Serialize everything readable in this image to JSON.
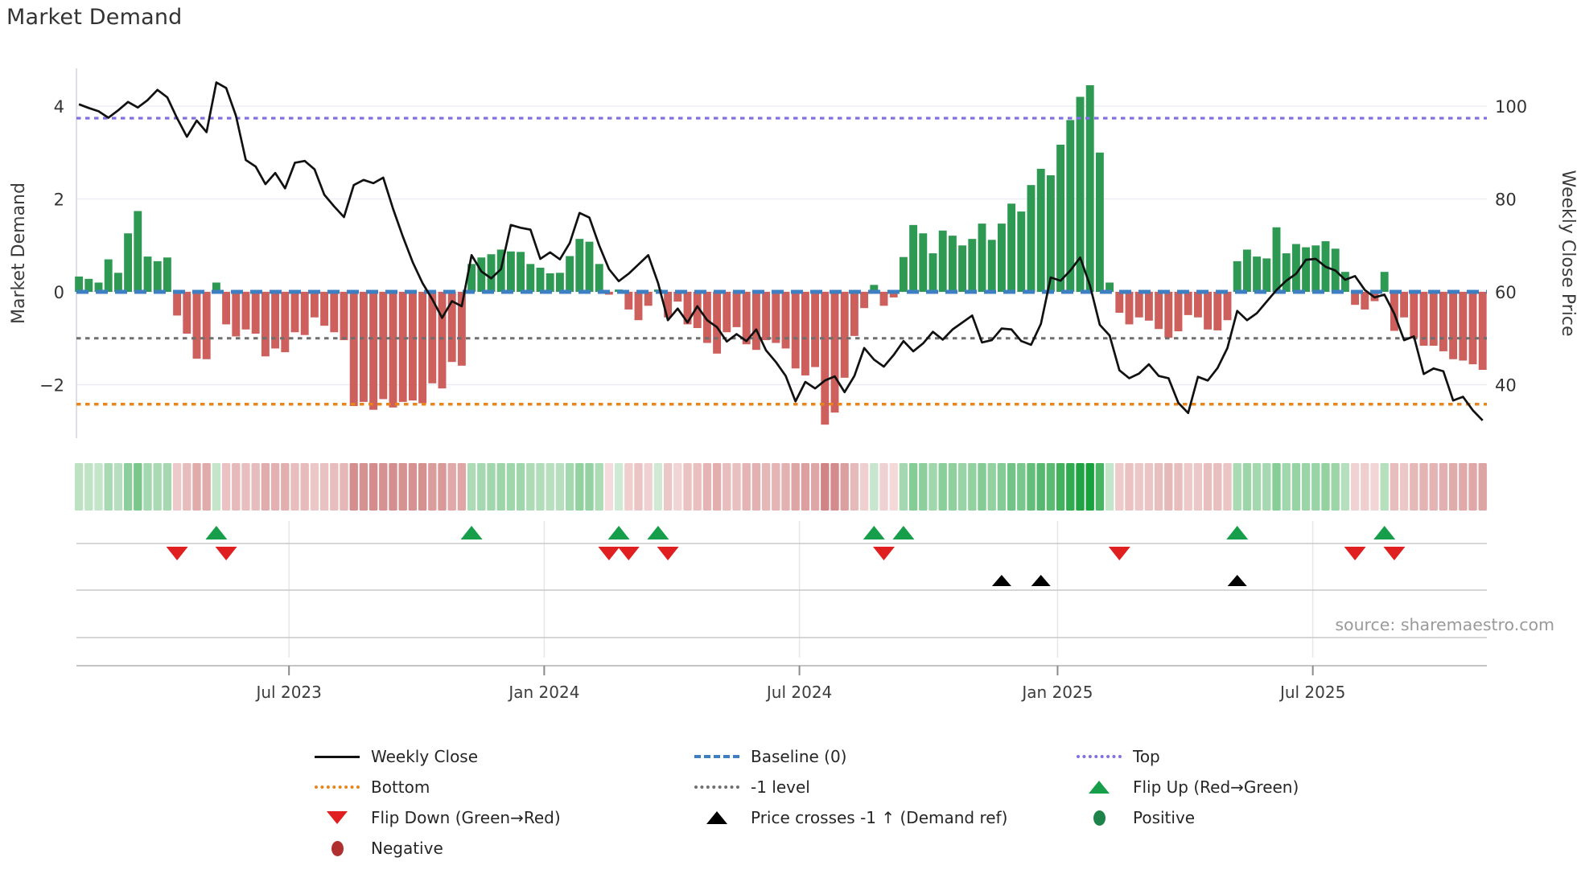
{
  "title": "Market Demand",
  "source": "source: sharemaestro.com",
  "left_axis": {
    "label": "Market Demand",
    "tick_labels": [
      "4",
      "2",
      "0",
      "−2"
    ],
    "tick_values": [
      4,
      2,
      0,
      -2
    ]
  },
  "right_axis": {
    "label": "Weekly Close Price",
    "tick_labels": [
      "100",
      "80",
      "60",
      "40"
    ],
    "tick_values": [
      100,
      80,
      60,
      40
    ]
  },
  "x_axis": {
    "tick_labels": [
      "Jul 2023",
      "Jan 2024",
      "Jul 2024",
      "Jan 2025",
      "Jul 2025"
    ],
    "tick_weeks": [
      21.4,
      47.4,
      73.4,
      99.7,
      125.7
    ]
  },
  "colors": {
    "bar_positive": "#2e9953",
    "bar_negative": "#cd5f5c",
    "price_line": "#111111",
    "baseline": "#3d7fc1",
    "top_line": "#8170e0",
    "bottom_line": "#e8861c",
    "minus1_line": "#6f6f6f",
    "flip_up": "#179e4b",
    "flip_down": "#e02020",
    "price_cross": "#000000",
    "positive_dot": "#1d8348",
    "negative_dot": "#b03030",
    "heat_pos_light": "#d7ecd9",
    "heat_pos_max": "#18a13c",
    "heat_neg_light": "#f6e0e0",
    "heat_neg_max": "#d08383",
    "grid": "#ebebf2",
    "axis_line": "#c9c9c9",
    "tick_text": "#3c3c3c",
    "source_text": "#9a9a9a"
  },
  "legend": {
    "columns": [
      {
        "items": [
          {
            "swatch": "line-black",
            "label": "Weekly Close"
          },
          {
            "swatch": "dotted-orange",
            "label": "Bottom"
          },
          {
            "swatch": "triangle-down-red",
            "label": "Flip Down (Green→Red)"
          },
          {
            "swatch": "circle-darkred",
            "label": "Negative"
          }
        ]
      },
      {
        "items": [
          {
            "swatch": "dashed-blue",
            "label": "Baseline (0)"
          },
          {
            "swatch": "dotted-gray",
            "label": "-1 level"
          },
          {
            "swatch": "triangle-up-black",
            "label": "Price crosses -1 ↑ (Demand ref)"
          }
        ]
      },
      {
        "items": [
          {
            "swatch": "dotted-purple",
            "label": "Top"
          },
          {
            "swatch": "triangle-up-green",
            "label": "Flip Up (Red→Green)"
          },
          {
            "swatch": "circle-green",
            "label": "Positive"
          }
        ]
      }
    ]
  },
  "chart_data": {
    "type": "bar",
    "subtype": "weekly demand bars + price line + heatmap strip + event markers",
    "weeks": 144,
    "x_range_note": "weekly data, approx Feb 2023 to Oct 2025",
    "ylim_left": [
      -3.15,
      4.8
    ],
    "ylim_right": [
      28.5,
      108
    ],
    "levels": {
      "baseline": 0,
      "top": 3.74,
      "minus1": -1,
      "bottom": -2.42
    },
    "series": [
      {
        "name": "Market Demand (bars)",
        "values": [
          0.33,
          0.28,
          0.2,
          0.7,
          0.41,
          1.26,
          1.74,
          0.76,
          0.66,
          0.74,
          -0.51,
          -0.9,
          -1.44,
          -1.45,
          0.2,
          -0.7,
          -0.96,
          -0.81,
          -0.9,
          -1.39,
          -1.22,
          -1.3,
          -0.87,
          -0.93,
          -0.55,
          -0.73,
          -0.87,
          -1.04,
          -2.46,
          -2.37,
          -2.54,
          -2.31,
          -2.49,
          -2.37,
          -2.34,
          -2.4,
          -1.97,
          -2.08,
          -1.51,
          -1.59,
          0.6,
          0.74,
          0.81,
          0.91,
          0.87,
          0.86,
          0.6,
          0.52,
          0.4,
          0.41,
          0.77,
          1.14,
          1.08,
          0.6,
          -0.06,
          0.05,
          -0.38,
          -0.61,
          -0.3,
          0.05,
          -0.55,
          -0.21,
          -0.7,
          -0.78,
          -1.1,
          -1.33,
          -0.87,
          -0.76,
          -1.13,
          -1.25,
          -1.04,
          -1.1,
          -1.22,
          -1.65,
          -1.8,
          -1.62,
          -2.86,
          -2.6,
          -1.85,
          -0.95,
          -0.35,
          0.15,
          -0.3,
          -0.12,
          0.75,
          1.44,
          1.26,
          0.83,
          1.32,
          1.21,
          1.0,
          1.14,
          1.47,
          1.12,
          1.47,
          1.9,
          1.73,
          2.3,
          2.65,
          2.51,
          3.17,
          3.7,
          4.2,
          4.45,
          3.0,
          0.2,
          -0.45,
          -0.7,
          -0.55,
          -0.62,
          -0.8,
          -0.99,
          -0.85,
          -0.5,
          -0.55,
          -0.81,
          -0.83,
          -0.61,
          0.66,
          0.91,
          0.76,
          0.72,
          1.39,
          0.83,
          1.03,
          0.96,
          1.0,
          1.09,
          0.93,
          0.43,
          -0.28,
          -0.38,
          -0.2,
          0.43,
          -0.84,
          -0.55,
          -0.99,
          -1.16,
          -1.16,
          -1.28,
          -1.45,
          -1.48,
          -1.56,
          -1.68
        ]
      },
      {
        "name": "Weekly Close (line, right axis)",
        "values": [
          100.4,
          99.6,
          98.9,
          97.5,
          99.1,
          100.9,
          99.7,
          101.3,
          103.5,
          101.9,
          97.4,
          93.4,
          96.9,
          94.4,
          105.1,
          103.9,
          97.9,
          88.4,
          87.0,
          83.2,
          85.6,
          82.3,
          87.8,
          88.2,
          86.4,
          80.9,
          78.4,
          76.1,
          83.0,
          84.1,
          83.4,
          84.6,
          77.9,
          71.9,
          66.4,
          61.9,
          58.4,
          54.4,
          58.0,
          56.9,
          67.9,
          64.4,
          62.9,
          64.9,
          74.4,
          73.8,
          73.4,
          67.1,
          68.5,
          67.0,
          70.5,
          77.0,
          76.0,
          70.0,
          64.9,
          62.3,
          63.9,
          65.9,
          67.9,
          61.9,
          53.9,
          56.4,
          53.4,
          56.9,
          53.9,
          52.4,
          49.3,
          50.9,
          49.4,
          51.9,
          47.4,
          44.9,
          41.9,
          36.4,
          40.6,
          39.2,
          40.9,
          41.8,
          38.4,
          41.9,
          47.9,
          45.4,
          43.9,
          46.4,
          49.4,
          47.2,
          48.9,
          51.4,
          49.7,
          51.9,
          53.4,
          54.9,
          49.1,
          49.6,
          52.1,
          51.9,
          49.4,
          48.6,
          53.1,
          63.1,
          62.4,
          64.6,
          67.4,
          61.4,
          52.9,
          50.6,
          43.1,
          41.4,
          42.4,
          44.4,
          41.9,
          41.4,
          36.1,
          33.9,
          41.7,
          40.9,
          43.6,
          47.9,
          55.9,
          53.9,
          55.4,
          57.9,
          60.4,
          62.4,
          63.9,
          66.9,
          67.1,
          65.4,
          64.6,
          62.6,
          63.4,
          60.4,
          58.8,
          59.4,
          55.3,
          49.6,
          50.4,
          42.3,
          43.5,
          42.9,
          36.6,
          37.4,
          34.5,
          32.3
        ]
      }
    ],
    "markers": {
      "flip_up_weeks": [
        14,
        40,
        55,
        59,
        81,
        84,
        118,
        133
      ],
      "flip_down_weeks": [
        10,
        15,
        54,
        56,
        60,
        82,
        106,
        130,
        134
      ],
      "price_cross_up_weeks": [
        94,
        98,
        118
      ]
    },
    "heatmap": "per-week cells colored by demand sign/magnitude (green positive, red negative)"
  }
}
